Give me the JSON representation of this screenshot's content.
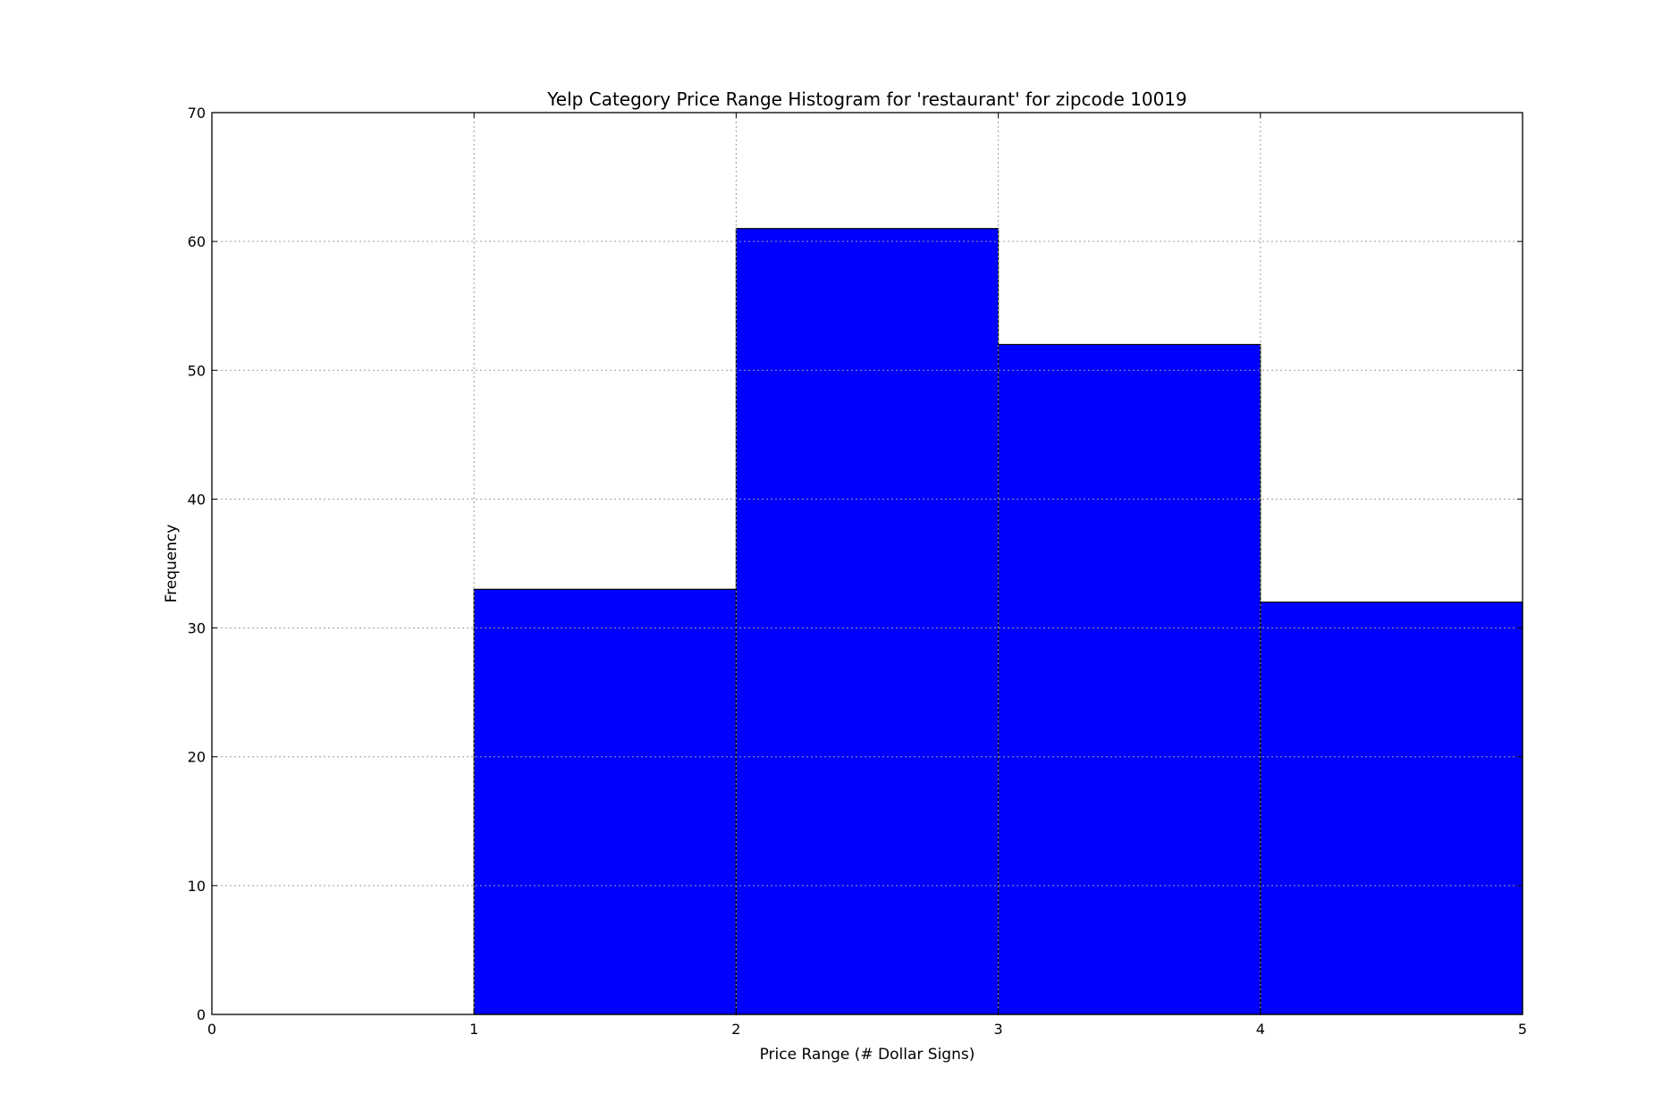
{
  "chart_data": {
    "type": "bar",
    "subtype": "histogram",
    "title": "Yelp Category Price Range Histogram for 'restaurant' for zipcode 10019",
    "xlabel": "Price Range (# Dollar Signs)",
    "ylabel": "Frequency",
    "bins": [
      {
        "start": 0,
        "end": 1,
        "value": 0
      },
      {
        "start": 1,
        "end": 2,
        "value": 33
      },
      {
        "start": 2,
        "end": 3,
        "value": 61
      },
      {
        "start": 3,
        "end": 4,
        "value": 52
      },
      {
        "start": 4,
        "end": 5,
        "value": 32
      }
    ],
    "xlim": [
      0,
      5
    ],
    "ylim": [
      0,
      70
    ],
    "xticks": [
      0,
      1,
      2,
      3,
      4,
      5
    ],
    "yticks": [
      0,
      10,
      20,
      30,
      40,
      50,
      60,
      70
    ],
    "grid": true,
    "legend": "none",
    "colors": {
      "bar": "#0000ff",
      "edge": "#000000",
      "grid": "#9a9a9a"
    }
  }
}
